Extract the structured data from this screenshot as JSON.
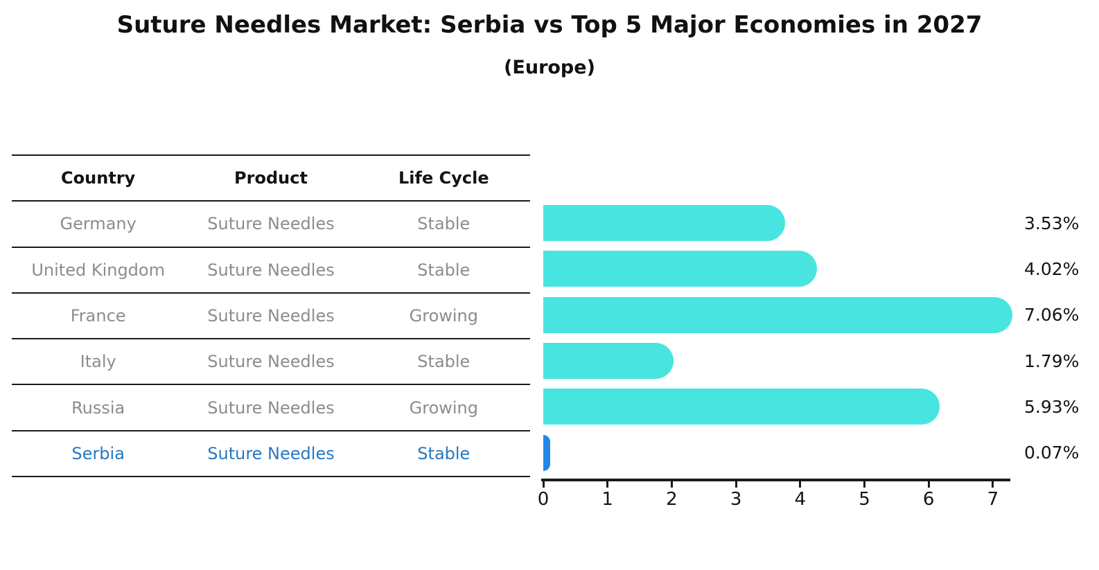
{
  "title": "Suture Needles Market: Serbia vs Top 5 Major Economies in 2027",
  "subtitle": "(Europe)",
  "table": {
    "headers": [
      "Country",
      "Product",
      "Life Cycle"
    ],
    "rows": [
      {
        "country": "Germany",
        "product": "Suture Needles",
        "life_cycle": "Stable",
        "highlight": false
      },
      {
        "country": "United Kingdom",
        "product": "Suture Needles",
        "life_cycle": "Stable",
        "highlight": false
      },
      {
        "country": "France",
        "product": "Suture Needles",
        "life_cycle": "Growing",
        "highlight": false
      },
      {
        "country": "Italy",
        "product": "Suture Needles",
        "life_cycle": "Stable",
        "highlight": false
      },
      {
        "country": "Russia",
        "product": "Suture Needles",
        "life_cycle": "Growing",
        "highlight": false
      },
      {
        "country": "Serbia",
        "product": "Suture Needles",
        "life_cycle": "Stable",
        "highlight": true
      }
    ]
  },
  "chart_data": {
    "type": "bar",
    "orientation": "horizontal",
    "title": "Suture Needles Market: Serbia vs Top 5 Major Economies in 2027 (Europe)",
    "categories": [
      "Germany",
      "United Kingdom",
      "France",
      "Italy",
      "Russia",
      "Serbia"
    ],
    "values": [
      3.53,
      4.02,
      7.06,
      1.79,
      5.93,
      0.07
    ],
    "value_labels": [
      "3.53%",
      "4.02%",
      "7.06%",
      "1.79%",
      "5.93%",
      "0.07%"
    ],
    "xlabel": "",
    "ylabel": "",
    "xlim": [
      0,
      7.25
    ],
    "x_ticks": [
      0,
      1,
      2,
      3,
      4,
      5,
      6,
      7
    ],
    "grid": false,
    "legend": false,
    "bar_color": "#48e5e0",
    "highlight_color": "#2287e8",
    "highlight_index": 5,
    "text_color_default": "#8c8c8c",
    "text_color_highlight": "#2878be"
  }
}
